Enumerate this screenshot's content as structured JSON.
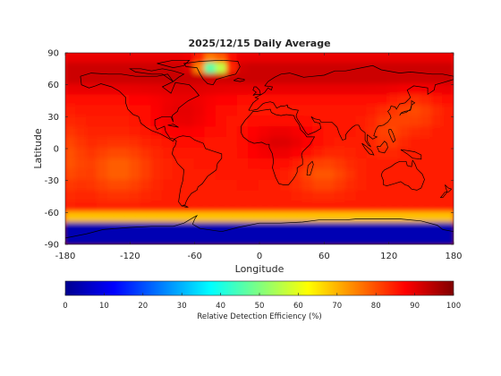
{
  "chart_data": {
    "type": "heatmap",
    "title": "2025/12/15 Daily Average",
    "xlabel": "Longitude",
    "ylabel": "Latitude",
    "xlim": [
      -180,
      180
    ],
    "ylim": [
      -90,
      90
    ],
    "x_ticks": [
      -180,
      -120,
      -60,
      0,
      60,
      120,
      180
    ],
    "y_ticks": [
      90,
      60,
      30,
      0,
      -30,
      -60,
      -90
    ],
    "grid": false,
    "colorbar": {
      "label": "Relative Detection Efficiency (%)",
      "range": [
        0,
        100
      ],
      "ticks": [
        0,
        10,
        20,
        30,
        40,
        50,
        60,
        70,
        80,
        90,
        100
      ],
      "colormap": [
        "#00008f",
        "#0000ff",
        "#0080ff",
        "#00ffff",
        "#80ff80",
        "#ffff00",
        "#ff8000",
        "#ff0000",
        "#800000"
      ],
      "orientation": "horizontal",
      "position": "bottom"
    },
    "field_summary": [
      {
        "region": "Antarctica (lat -90 to -72)",
        "value": 5
      },
      {
        "region": "Southern Ocean belt (lat -72 to -62)",
        "value": 45
      },
      {
        "region": "Southern mid-latitudes (lat -62 to -40)",
        "value": 85
      },
      {
        "region": "Tropics and subtropics",
        "value": 85
      },
      {
        "region": "Arctic / high northern latitudes",
        "value": 95
      },
      {
        "region": "Greenland anomaly (lon -60 to -25, lat 70 to 85)",
        "value": 40
      }
    ]
  }
}
